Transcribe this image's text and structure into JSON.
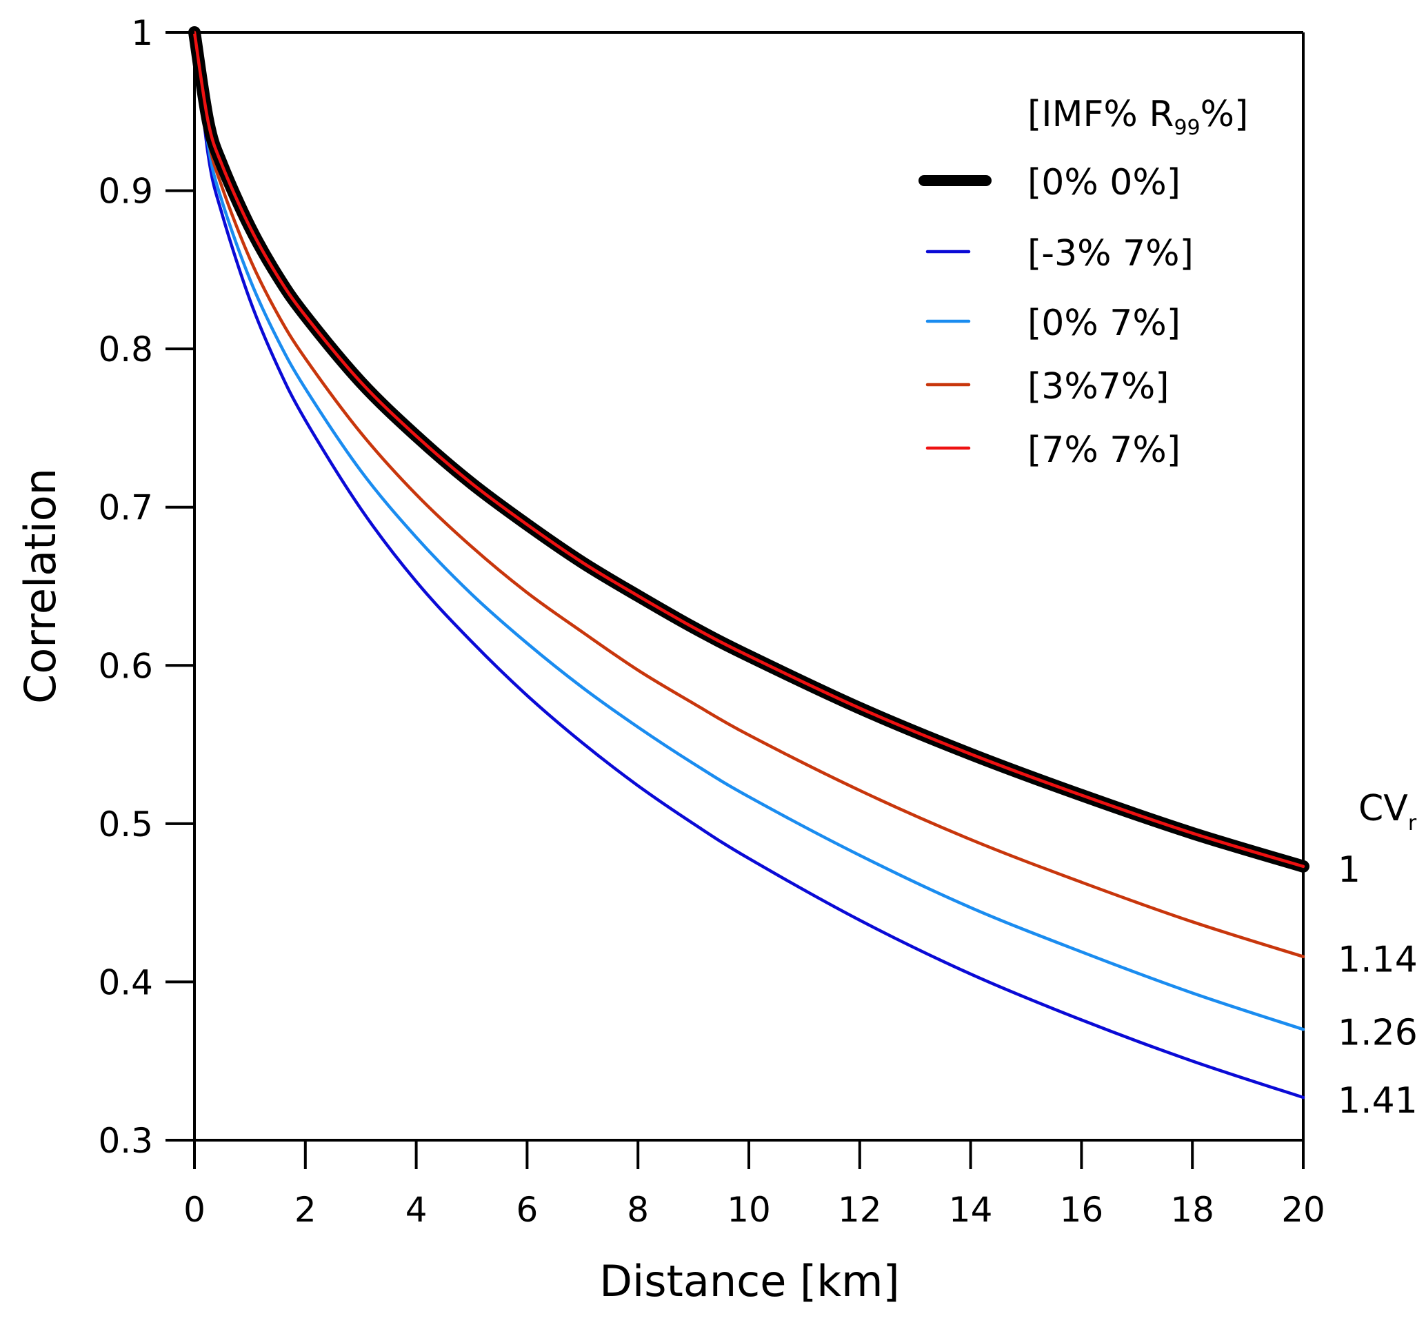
{
  "chart_data": {
    "type": "line",
    "title": "",
    "xlabel": "Distance [km]",
    "ylabel": "Correlation",
    "xlim": [
      0,
      20
    ],
    "ylim": [
      0.3,
      1
    ],
    "xticks": [
      "0",
      "2",
      "4",
      "6",
      "8",
      "10",
      "12",
      "14",
      "16",
      "18",
      "20"
    ],
    "xtick_values": [
      0,
      2,
      4,
      6,
      8,
      10,
      12,
      14,
      16,
      18,
      20
    ],
    "yticks": [
      "0.3",
      "0.4",
      "0.5",
      "0.6",
      "0.7",
      "0.8",
      "0.9",
      "1"
    ],
    "ytick_values": [
      0.3,
      0.4,
      0.5,
      0.6,
      0.7,
      0.8,
      0.9,
      1.0
    ],
    "grid": false,
    "legend": {
      "placement": "top-right",
      "title_main": "[IMF% R",
      "title_sub": "99",
      "title_end": "%]"
    },
    "x": [
      0,
      0.25,
      0.5,
      1,
      1.5,
      2,
      3,
      4,
      5,
      6,
      7,
      8,
      9,
      10,
      12,
      14,
      16,
      18,
      20
    ],
    "series": [
      {
        "name": "[0% 0%]",
        "color": "#000000",
        "width": "thick",
        "cv_r": "1",
        "values": [
          1.0,
          0.943,
          0.916,
          0.877,
          0.846,
          0.821,
          0.779,
          0.745,
          0.715,
          0.689,
          0.665,
          0.644,
          0.624,
          0.606,
          0.573,
          0.544,
          0.518,
          0.494,
          0.473
        ]
      },
      {
        "name": "[-3% 7%]",
        "color": "#0a0ad6",
        "width": "thin",
        "cv_r": "1.41",
        "values": [
          1.0,
          0.922,
          0.885,
          0.831,
          0.789,
          0.755,
          0.699,
          0.653,
          0.615,
          0.581,
          0.551,
          0.524,
          0.5,
          0.478,
          0.439,
          0.405,
          0.376,
          0.35,
          0.327
        ]
      },
      {
        "name": "[0% 7%]",
        "color": "#1a8cf0",
        "width": "thin",
        "cv_r": "1.26",
        "values": [
          1.0,
          0.928,
          0.893,
          0.844,
          0.806,
          0.775,
          0.723,
          0.681,
          0.645,
          0.614,
          0.586,
          0.561,
          0.538,
          0.517,
          0.48,
          0.447,
          0.419,
          0.393,
          0.37
        ]
      },
      {
        "name": "[3%7%]",
        "color": "#c8360c",
        "width": "thin",
        "cv_r": "1.14",
        "values": [
          1.0,
          0.933,
          0.902,
          0.857,
          0.822,
          0.794,
          0.747,
          0.708,
          0.675,
          0.646,
          0.621,
          0.597,
          0.576,
          0.556,
          0.521,
          0.49,
          0.463,
          0.438,
          0.416
        ]
      },
      {
        "name": "[7% 7%]",
        "color": "#ee1111",
        "width": "thin",
        "cv_r": "",
        "values": [
          1.0,
          0.943,
          0.916,
          0.877,
          0.846,
          0.821,
          0.779,
          0.745,
          0.715,
          0.689,
          0.665,
          0.644,
          0.624,
          0.606,
          0.573,
          0.544,
          0.518,
          0.494,
          0.473
        ]
      }
    ],
    "annotations": {
      "cv_title_main": "CV",
      "cv_title_sub": "r",
      "cv_values": [
        "1",
        "1.14",
        "1.26",
        "1.41"
      ]
    }
  }
}
